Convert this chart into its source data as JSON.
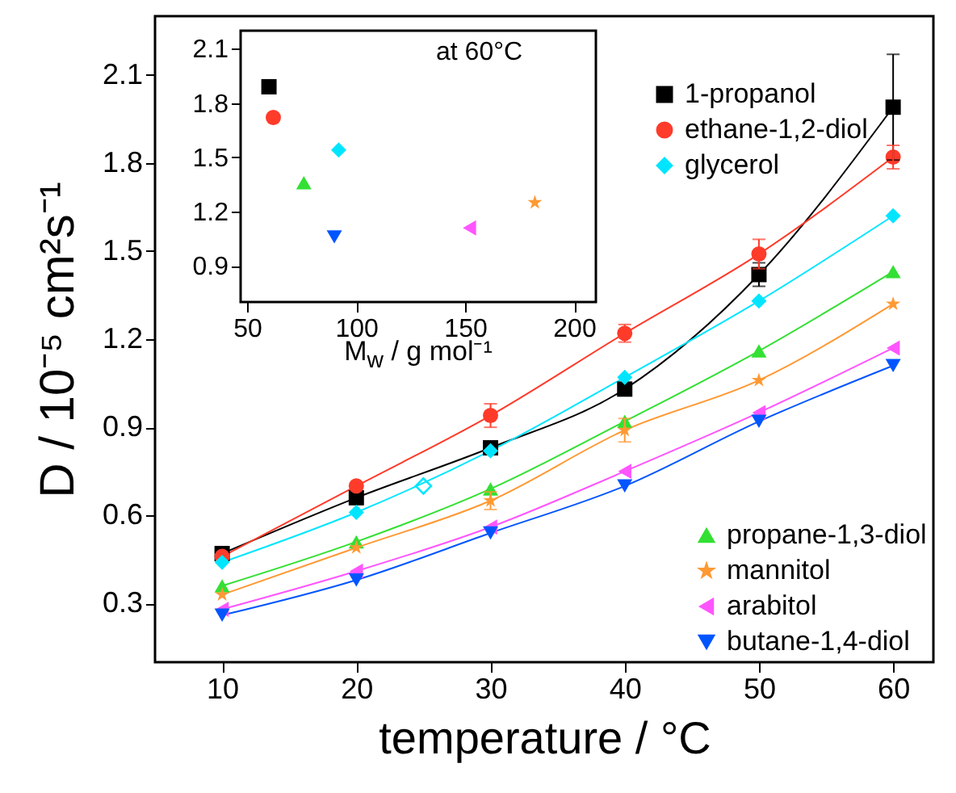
{
  "chart_data": [
    {
      "type": "line",
      "xlabel": "temperature / °C",
      "ylabel": "D / 10⁻⁵ cm²s⁻¹",
      "x": [
        10,
        20,
        30,
        40,
        50,
        60
      ],
      "xlim": [
        5,
        63
      ],
      "xticks": [
        10,
        20,
        30,
        40,
        50,
        60
      ],
      "ylim": [
        0.1,
        2.3
      ],
      "yticks": [
        0.3,
        0.6,
        0.9,
        1.2,
        1.5,
        1.8,
        2.1
      ],
      "grid": false,
      "legend": "right",
      "series": [
        {
          "name": "1-propanol",
          "color": "#000000",
          "marker": "square",
          "values": [
            0.47,
            0.66,
            0.83,
            1.03,
            1.42,
            1.99
          ],
          "errors": [
            null,
            null,
            null,
            null,
            0.04,
            [
              1.81,
              2.17
            ]
          ]
        },
        {
          "name": "ethane-1,2-diol",
          "color": "#ff3b2a",
          "marker": "circle",
          "values": [
            0.46,
            0.7,
            0.94,
            1.22,
            1.49,
            1.82
          ],
          "errors": [
            null,
            null,
            0.04,
            0.03,
            0.05,
            0.04
          ]
        },
        {
          "name": "glycerol",
          "color": "#00e5ff",
          "marker": "diamond",
          "values": [
            0.44,
            0.61,
            0.82,
            1.07,
            1.33,
            1.62
          ]
        },
        {
          "type": "scatter",
          "color": "#00e5ff",
          "marker": "diamond",
          "x": [
            25
          ],
          "values": [
            0.7
          ]
        },
        {
          "name": "propane-1,3-diol",
          "color": "#33e033",
          "marker": "triangle",
          "values": [
            0.36,
            0.51,
            0.69,
            0.92,
            1.16,
            1.43
          ]
        },
        {
          "name": "mannitol",
          "color": "#ff9933",
          "marker": "star",
          "values": [
            0.33,
            0.49,
            0.65,
            0.89,
            1.06,
            1.32
          ],
          "errors": [
            null,
            null,
            0.03,
            0.04,
            null,
            null
          ]
        },
        {
          "name": "arabitol",
          "color": "#ff55ff",
          "marker": "triangle-left",
          "values": [
            0.28,
            0.41,
            0.56,
            0.75,
            0.95,
            1.17
          ]
        },
        {
          "name": "butane-1,4-diol",
          "color": "#0055ff",
          "marker": "triangle-down",
          "values": [
            0.26,
            0.38,
            0.54,
            0.7,
            0.92,
            1.11
          ]
        }
      ]
    },
    {
      "type": "scatter",
      "xlabel": "M$_{w}$ / g mol⁻¹",
      "annotations": [
        "at 60°C"
      ],
      "xlim": [
        47,
        210
      ],
      "xticks": [
        50,
        100,
        150,
        200
      ],
      "ylim": [
        0.7,
        2.2
      ],
      "yticks": [
        0.9,
        1.2,
        1.5,
        1.8,
        2.1
      ],
      "grid": false,
      "series": [
        {
          "color": "#000000",
          "marker": "square",
          "x": [
            60
          ],
          "values": [
            1.89
          ]
        },
        {
          "color": "#ff3b2a",
          "marker": "circle",
          "x": [
            62
          ],
          "values": [
            1.72
          ]
        },
        {
          "color": "#00e5ff",
          "marker": "diamond",
          "x": [
            92
          ],
          "values": [
            1.54
          ]
        },
        {
          "color": "#33e033",
          "marker": "triangle",
          "x": [
            76
          ],
          "values": [
            1.36
          ]
        },
        {
          "color": "#ff9933",
          "marker": "star",
          "x": [
            182
          ],
          "values": [
            1.25
          ]
        },
        {
          "color": "#ff55ff",
          "marker": "triangle-left",
          "x": [
            152
          ],
          "values": [
            1.11
          ]
        },
        {
          "color": "#0055ff",
          "marker": "triangle-down",
          "x": [
            90
          ],
          "values": [
            1.06
          ]
        }
      ]
    }
  ]
}
